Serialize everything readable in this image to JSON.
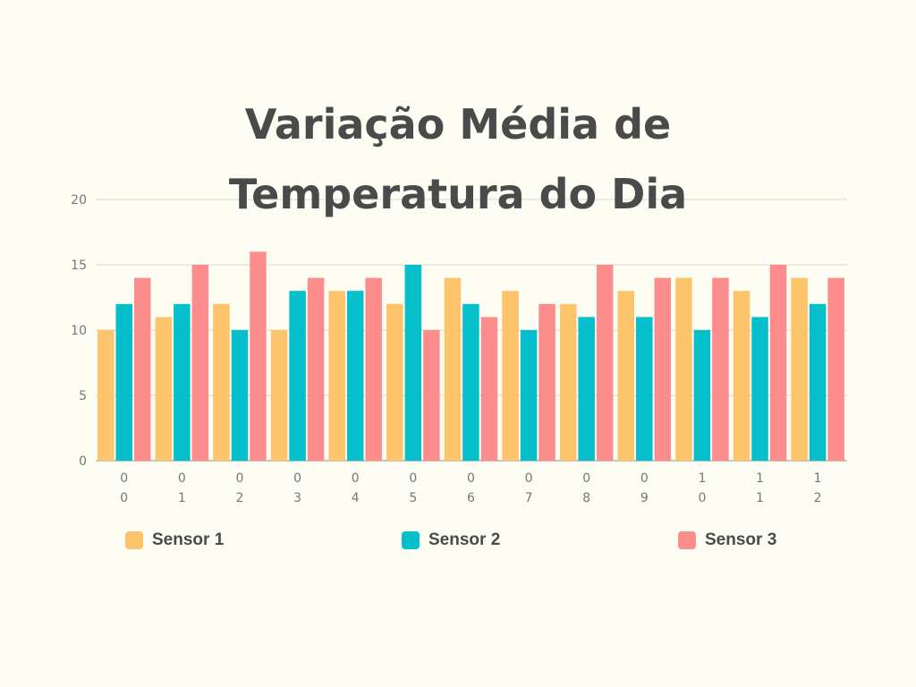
{
  "chart_data": {
    "type": "bar",
    "title": "Variação Média de Temperatura do Dia",
    "xlabel": "",
    "ylabel": "",
    "ylim": [
      0,
      20
    ],
    "yticks": [
      0,
      5,
      10,
      15,
      20
    ],
    "grid": true,
    "legend_position": "bottom",
    "categories": [
      "00",
      "01",
      "02",
      "03",
      "04",
      "05",
      "06",
      "07",
      "08",
      "09",
      "10",
      "11",
      "12"
    ],
    "series": [
      {
        "name": "Sensor 1",
        "color": "#fec46b",
        "values": [
          10,
          11,
          12,
          10,
          13,
          12,
          14,
          13,
          12,
          13,
          14,
          13,
          14
        ]
      },
      {
        "name": "Sensor 2",
        "color": "#05bfcb",
        "values": [
          12,
          12,
          10,
          13,
          13,
          15,
          12,
          10,
          11,
          11,
          10,
          11,
          12
        ]
      },
      {
        "name": "Sensor 3",
        "color": "#fd8d8d",
        "values": [
          14,
          15,
          16,
          14,
          14,
          10,
          11,
          12,
          15,
          14,
          14,
          15,
          14
        ]
      }
    ]
  }
}
